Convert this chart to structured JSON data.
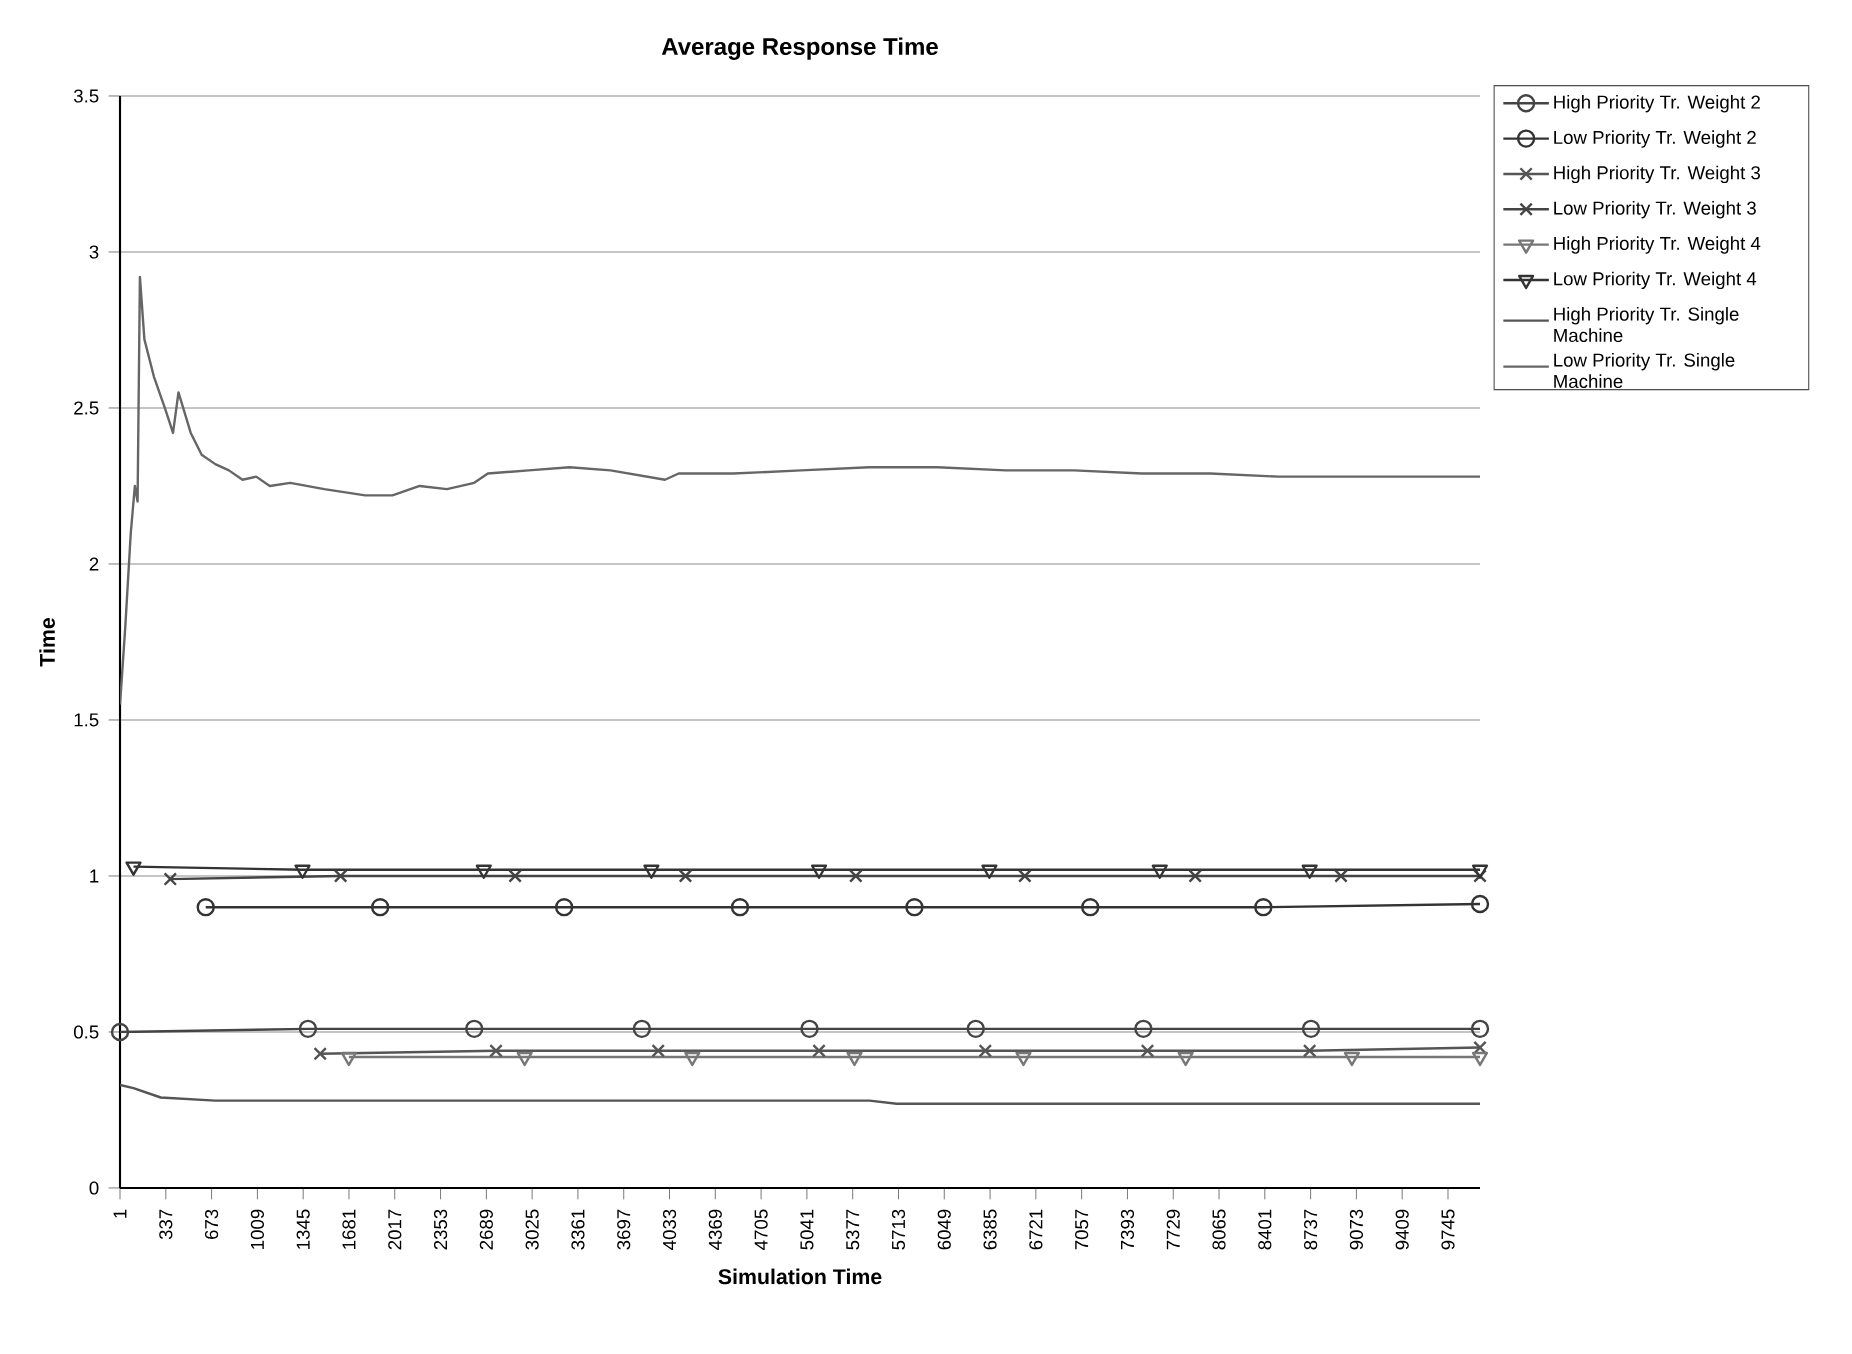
{
  "chart_data": {
    "type": "line",
    "title": "Average Response Time",
    "xlabel": "Simulation Time",
    "ylabel": "Time",
    "xlim": [
      1,
      9980
    ],
    "ylim": [
      0,
      3.5
    ],
    "yticks": [
      0,
      0.5,
      1,
      1.5,
      2,
      2.5,
      3,
      3.5
    ],
    "xticks": [
      1,
      337,
      673,
      1009,
      1345,
      1681,
      2017,
      2353,
      2689,
      3025,
      3361,
      3697,
      4033,
      4369,
      4705,
      5041,
      5377,
      5713,
      6049,
      6385,
      6721,
      7057,
      7393,
      7729,
      8065,
      8401,
      8737,
      9073,
      9409,
      9745
    ],
    "grid": "y",
    "legend": "right",
    "series": [
      {
        "name": "High Priority Tr. Weight 2",
        "color": "#444444",
        "marker": "circle",
        "x": [
          1,
          1380,
          2600,
          3830,
          5060,
          6280,
          7510,
          8740,
          9980
        ],
        "values": [
          0.5,
          0.51,
          0.51,
          0.51,
          0.51,
          0.51,
          0.51,
          0.51,
          0.51
        ]
      },
      {
        "name": "Low Priority Tr. Weight 2",
        "color": "#333333",
        "marker": "circle",
        "x": [
          630,
          1910,
          3260,
          4550,
          5830,
          7120,
          8390,
          9980
        ],
        "values": [
          0.9,
          0.9,
          0.9,
          0.9,
          0.9,
          0.9,
          0.9,
          0.91
        ]
      },
      {
        "name": "High Priority Tr. Weight 3",
        "color": "#555555",
        "marker": "cross",
        "x": [
          1470,
          2760,
          3950,
          5130,
          6350,
          7540,
          8730,
          9980
        ],
        "values": [
          0.43,
          0.44,
          0.44,
          0.44,
          0.44,
          0.44,
          0.44,
          0.45
        ]
      },
      {
        "name": "Low Priority Tr. Weight 3",
        "color": "#444444",
        "marker": "cross",
        "x": [
          370,
          1620,
          2900,
          4150,
          5400,
          6640,
          7890,
          8960,
          9980
        ],
        "values": [
          0.99,
          1.0,
          1.0,
          1.0,
          1.0,
          1.0,
          1.0,
          1.0,
          1.0
        ]
      },
      {
        "name": "High Priority Tr. Weight 4",
        "color": "#777777",
        "marker": "triangle",
        "x": [
          1680,
          2970,
          4200,
          5390,
          6630,
          7820,
          9040,
          9980
        ],
        "values": [
          0.42,
          0.42,
          0.42,
          0.42,
          0.42,
          0.42,
          0.42,
          0.42
        ]
      },
      {
        "name": "Low Priority Tr. Weight 4",
        "color": "#333333",
        "marker": "triangle",
        "x": [
          100,
          1340,
          2670,
          3900,
          5130,
          6380,
          7630,
          8730,
          9980
        ],
        "values": [
          1.03,
          1.02,
          1.02,
          1.02,
          1.02,
          1.02,
          1.02,
          1.02,
          1.02
        ]
      },
      {
        "name": "High Priority Tr. Single Machine",
        "color": "#555555",
        "x": [
          1,
          100,
          300,
          700,
          3000,
          5500,
          5700,
          9980
        ],
        "values": [
          0.33,
          0.32,
          0.29,
          0.28,
          0.28,
          0.28,
          0.27,
          0.27
        ]
      },
      {
        "name": "Low Priority Tr. Single Machine",
        "color": "#666666",
        "x": [
          1,
          40,
          80,
          110,
          130,
          147,
          180,
          250,
          330,
          390,
          430,
          520,
          600,
          700,
          800,
          900,
          1000,
          1100,
          1250,
          1500,
          1800,
          2000,
          2200,
          2400,
          2600,
          2700,
          3000,
          3300,
          3600,
          4000,
          4100,
          4500,
          5000,
          5500,
          6000,
          6500,
          7000,
          7500,
          8000,
          8500,
          9000,
          9500,
          9980
        ],
        "values": [
          1.55,
          1.8,
          2.1,
          2.25,
          2.2,
          2.92,
          2.72,
          2.6,
          2.5,
          2.42,
          2.55,
          2.42,
          2.35,
          2.32,
          2.3,
          2.27,
          2.28,
          2.25,
          2.26,
          2.24,
          2.22,
          2.22,
          2.25,
          2.24,
          2.26,
          2.29,
          2.3,
          2.31,
          2.3,
          2.27,
          2.29,
          2.29,
          2.3,
          2.31,
          2.31,
          2.3,
          2.3,
          2.29,
          2.29,
          2.28,
          2.28,
          2.28,
          2.28
        ]
      }
    ]
  }
}
